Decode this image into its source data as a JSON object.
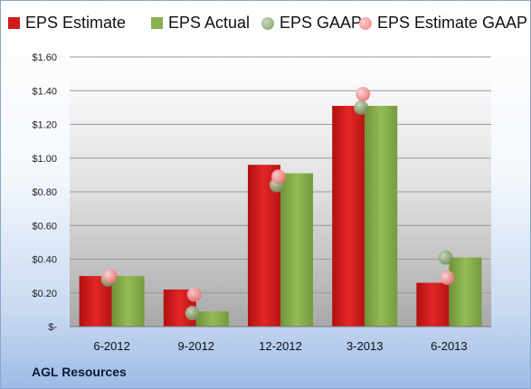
{
  "legend": [
    {
      "label": "EPS Estimate",
      "color": "#d11a1a",
      "shape": "square"
    },
    {
      "label": "EPS Actual",
      "color": "#8cb050",
      "shape": "square"
    },
    {
      "label": "EPS GAAP",
      "color": "#7f9f6a",
      "shape": "circle"
    },
    {
      "label": "EPS Estimate GAAP",
      "color": "#f08080",
      "shape": "circle"
    }
  ],
  "company": "AGL Resources",
  "chart_data": {
    "type": "bar",
    "categories": [
      "6-2012",
      "9-2012",
      "12-2012",
      "3-2013",
      "6-2013"
    ],
    "series": [
      {
        "name": "EPS Estimate",
        "type": "bar",
        "color": "#d11a1a",
        "values": [
          0.3,
          0.22,
          0.96,
          1.31,
          0.26
        ]
      },
      {
        "name": "EPS Actual",
        "type": "bar",
        "color": "#8cb050",
        "values": [
          0.3,
          0.09,
          0.91,
          1.31,
          0.41
        ]
      },
      {
        "name": "EPS GAAP",
        "type": "marker",
        "color": "#7f9f6a",
        "values": [
          0.28,
          0.08,
          0.84,
          1.3,
          0.41
        ]
      },
      {
        "name": "EPS Estimate GAAP",
        "type": "marker",
        "color": "#f08080",
        "values": [
          0.3,
          0.19,
          0.89,
          1.38,
          0.29
        ]
      }
    ],
    "ylim": [
      0,
      1.6
    ],
    "yticks": [
      {
        "value": 0.0,
        "label": "$-"
      },
      {
        "value": 0.2,
        "label": "$0.20"
      },
      {
        "value": 0.4,
        "label": "$0.40"
      },
      {
        "value": 0.6,
        "label": "$0.60"
      },
      {
        "value": 0.8,
        "label": "$0.80"
      },
      {
        "value": 1.0,
        "label": "$1.00"
      },
      {
        "value": 1.2,
        "label": "$1.20"
      },
      {
        "value": 1.4,
        "label": "$1.40"
      },
      {
        "value": 1.6,
        "label": "$1.60"
      }
    ],
    "grid": true,
    "legend_position": "top"
  }
}
